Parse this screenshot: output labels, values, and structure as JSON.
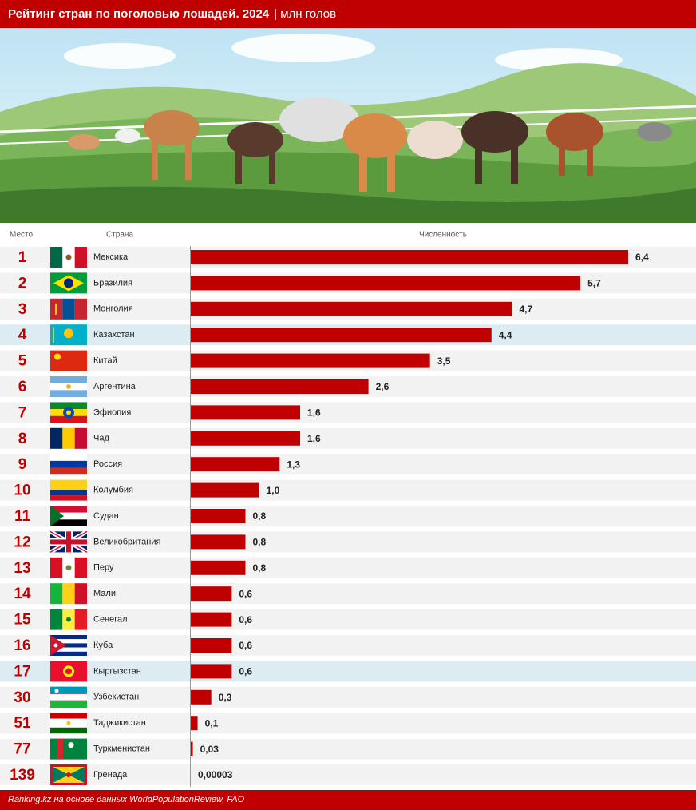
{
  "chart_data": {
    "type": "bar",
    "title": "Рейтинг стран по поголовью лошадей. 2024",
    "subtitle": "| млн голов",
    "column_headers": [
      "Место",
      "Страна",
      "Численность"
    ],
    "ranks": [
      1,
      2,
      3,
      4,
      5,
      6,
      7,
      8,
      9,
      10,
      11,
      12,
      13,
      14,
      15,
      16,
      17,
      30,
      51,
      77,
      139
    ],
    "categories": [
      "Мексика",
      "Бразилия",
      "Монголия",
      "Казахстан",
      "Китай",
      "Аргентина",
      "Эфиопия",
      "Чад",
      "Россия",
      "Колумбия",
      "Судан",
      "Великобритания",
      "Перу",
      "Мали",
      "Сенегал",
      "Куба",
      "Кыргызстан",
      "Узбекистан",
      "Таджикистан",
      "Туркменистан",
      "Гренада"
    ],
    "values": [
      6.4,
      5.7,
      4.7,
      4.4,
      3.5,
      2.6,
      1.6,
      1.6,
      1.3,
      1.0,
      0.8,
      0.8,
      0.8,
      0.6,
      0.6,
      0.6,
      0.6,
      0.3,
      0.1,
      0.03,
      3e-05
    ],
    "value_labels": [
      "6,4",
      "5,7",
      "4,7",
      "4,4",
      "3,5",
      "2,6",
      "1,6",
      "1,6",
      "1,3",
      "1,0",
      "0,8",
      "0,8",
      "0,8",
      "0,6",
      "0,6",
      "0,6",
      "0,6",
      "0,3",
      "0,1",
      "0,03",
      "0,00003"
    ],
    "color": "#c00000",
    "highlight": [
      "Казахстан",
      "Кыргызстан"
    ],
    "highlight_color": "#dcecf2",
    "source": "Ranking.kz на основе данных WorldPopulationReview, FAO"
  }
}
